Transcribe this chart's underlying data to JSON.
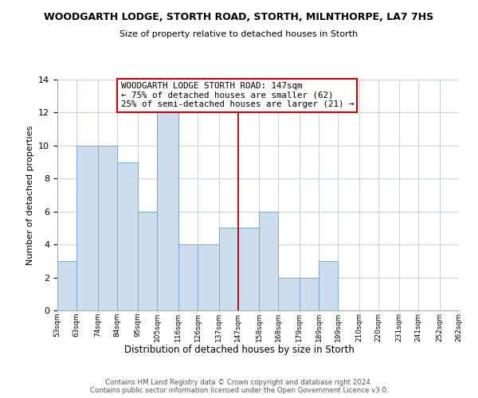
{
  "title": "WOODGARTH LODGE, STORTH ROAD, STORTH, MILNTHORPE, LA7 7HS",
  "subtitle": "Size of property relative to detached houses in Storth",
  "xlabel": "Distribution of detached houses by size in Storth",
  "ylabel": "Number of detached properties",
  "bar_color": "#ccdded",
  "bar_edge_color": "#7aaac8",
  "bins": [
    53,
    63,
    74,
    84,
    95,
    105,
    116,
    126,
    137,
    147,
    158,
    168,
    179,
    189,
    199,
    210,
    220,
    231,
    241,
    252,
    262
  ],
  "bin_labels": [
    "53sqm",
    "63sqm",
    "74sqm",
    "84sqm",
    "95sqm",
    "105sqm",
    "116sqm",
    "126sqm",
    "137sqm",
    "147sqm",
    "158sqm",
    "168sqm",
    "179sqm",
    "189sqm",
    "199sqm",
    "210sqm",
    "220sqm",
    "231sqm",
    "241sqm",
    "252sqm",
    "262sqm"
  ],
  "counts": [
    3,
    10,
    10,
    9,
    6,
    12,
    4,
    4,
    5,
    5,
    6,
    2,
    2,
    3,
    0,
    0,
    0,
    0,
    0,
    0
  ],
  "vline_x": 147,
  "vline_color": "#aa0000",
  "ylim": [
    0,
    14
  ],
  "yticks": [
    0,
    2,
    4,
    6,
    8,
    10,
    12,
    14
  ],
  "annotation_title": "WOODGARTH LODGE STORTH ROAD: 147sqm",
  "annotation_line1": "← 75% of detached houses are smaller (62)",
  "annotation_line2": "25% of semi-detached houses are larger (21) →",
  "annotation_box_color": "#ffffff",
  "annotation_border_color": "#cc0000",
  "footer_line1": "Contains HM Land Registry data © Crown copyright and database right 2024.",
  "footer_line2": "Contains public sector information licensed under the Open Government Licence v3.0.",
  "background_color": "#ffffff",
  "grid_color": "#c8d4de"
}
